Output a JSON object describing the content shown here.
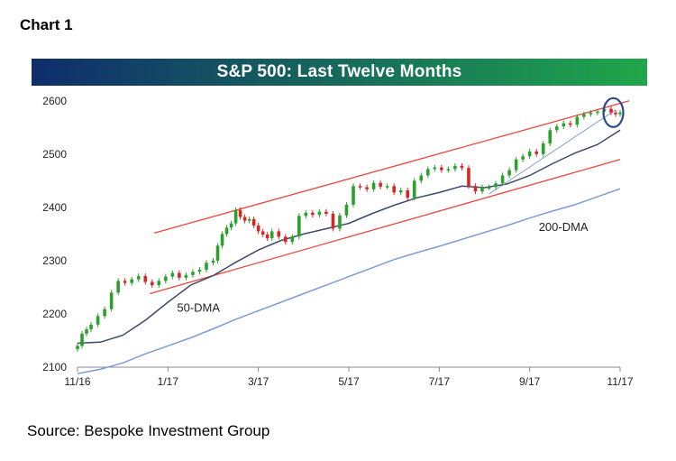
{
  "header": {
    "chart_label": "Chart 1"
  },
  "footer": {
    "source": "Source: Bespoke Investment Group"
  },
  "colors": {
    "title_gradient_start": "#0f2d6c",
    "title_gradient_end": "#1fa64a",
    "up_candle": "#2ca02c",
    "down_candle": "#d62728",
    "channel": "#e8463c",
    "dma50": "#3d4a6a",
    "dma200": "#7f9bd6",
    "highlight": "#2c4a8a"
  },
  "chart_data": {
    "type": "line",
    "title": "S&P 500: Last Twelve Months",
    "xlabel": "",
    "ylabel": "",
    "ylim": [
      2100,
      2620
    ],
    "yticks": [
      2100,
      2200,
      2300,
      2400,
      2500,
      2600
    ],
    "xlim": [
      0,
      12
    ],
    "xticks": [
      {
        "x": 0,
        "label": "11/16"
      },
      {
        "x": 2,
        "label": "1/17"
      },
      {
        "x": 4,
        "label": "3/17"
      },
      {
        "x": 6,
        "label": "5/17"
      },
      {
        "x": 8,
        "label": "7/17"
      },
      {
        "x": 10,
        "label": "9/17"
      },
      {
        "x": 12,
        "label": "11/17"
      }
    ],
    "grid": false,
    "legend": "none",
    "annotations": [
      {
        "text": "50-DMA",
        "x": 2.2,
        "y": 2204
      },
      {
        "text": "200-DMA",
        "x": 10.2,
        "y": 2356
      },
      {
        "text": "",
        "type": "circle",
        "x": 11.85,
        "y": 2578
      }
    ],
    "channel": {
      "upper": {
        "x": [
          1.7,
          12.2
        ],
        "y": [
          2352,
          2600
        ]
      },
      "lower": {
        "x": [
          1.6,
          12.0
        ],
        "y": [
          2238,
          2490
        ]
      }
    },
    "trendline": {
      "x": [
        9.1,
        11.9
      ],
      "y": [
        2425,
        2583
      ]
    },
    "series": [
      {
        "name": "S&P 500",
        "style": "candles",
        "x": [
          0.0,
          0.1,
          0.2,
          0.3,
          0.45,
          0.6,
          0.75,
          0.9,
          1.05,
          1.2,
          1.35,
          1.5,
          1.65,
          1.8,
          1.95,
          2.1,
          2.25,
          2.4,
          2.55,
          2.7,
          2.85,
          3.0,
          3.1,
          3.2,
          3.3,
          3.4,
          3.5,
          3.6,
          3.7,
          3.8,
          3.9,
          4.0,
          4.1,
          4.2,
          4.3,
          4.45,
          4.6,
          4.75,
          4.9,
          5.05,
          5.2,
          5.35,
          5.5,
          5.65,
          5.8,
          5.95,
          6.1,
          6.25,
          6.4,
          6.55,
          6.7,
          6.85,
          7.0,
          7.15,
          7.3,
          7.45,
          7.6,
          7.75,
          7.9,
          8.05,
          8.2,
          8.35,
          8.5,
          8.65,
          8.8,
          8.95,
          9.1,
          9.25,
          9.4,
          9.55,
          9.7,
          9.85,
          10.0,
          10.15,
          10.3,
          10.45,
          10.6,
          10.75,
          10.9,
          11.05,
          11.2,
          11.35,
          11.5,
          11.65,
          11.8,
          11.9,
          12.0
        ],
        "y": [
          2140,
          2163,
          2171,
          2180,
          2196,
          2209,
          2240,
          2262,
          2258,
          2265,
          2271,
          2260,
          2254,
          2262,
          2270,
          2277,
          2268,
          2273,
          2279,
          2283,
          2296,
          2300,
          2328,
          2350,
          2362,
          2370,
          2395,
          2382,
          2375,
          2378,
          2366,
          2355,
          2349,
          2342,
          2355,
          2345,
          2335,
          2345,
          2384,
          2390,
          2386,
          2392,
          2388,
          2360,
          2385,
          2405,
          2440,
          2438,
          2434,
          2446,
          2439,
          2440,
          2428,
          2432,
          2418,
          2450,
          2460,
          2472,
          2475,
          2470,
          2472,
          2478,
          2474,
          2440,
          2430,
          2438,
          2438,
          2445,
          2460,
          2470,
          2490,
          2496,
          2505,
          2500,
          2520,
          2545,
          2552,
          2558,
          2555,
          2570,
          2575,
          2578,
          2580,
          2585,
          2578,
          2575,
          2578
        ]
      },
      {
        "name": "50-DMA",
        "style": "line",
        "x": [
          0.0,
          0.5,
          1.0,
          1.5,
          2.0,
          2.5,
          3.0,
          3.5,
          4.0,
          4.5,
          5.0,
          5.5,
          6.0,
          6.5,
          7.0,
          7.5,
          8.0,
          8.5,
          9.0,
          9.5,
          10.0,
          10.5,
          11.0,
          11.5,
          12.0
        ],
        "y": [
          2145,
          2147,
          2160,
          2188,
          2222,
          2254,
          2272,
          2297,
          2320,
          2338,
          2350,
          2360,
          2370,
          2388,
          2404,
          2418,
          2428,
          2440,
          2437,
          2444,
          2460,
          2482,
          2502,
          2518,
          2545
        ]
      },
      {
        "name": "200-DMA",
        "style": "line",
        "x": [
          0.0,
          0.5,
          1.0,
          1.5,
          2.0,
          2.5,
          3.0,
          3.5,
          4.0,
          4.5,
          5.0,
          5.5,
          6.0,
          6.5,
          7.0,
          7.5,
          8.0,
          8.5,
          9.0,
          9.5,
          10.0,
          10.5,
          11.0,
          11.5,
          12.0
        ],
        "y": [
          2088,
          2096,
          2108,
          2125,
          2140,
          2155,
          2172,
          2190,
          2206,
          2222,
          2238,
          2254,
          2270,
          2286,
          2302,
          2315,
          2327,
          2340,
          2353,
          2366,
          2380,
          2393,
          2405,
          2420,
          2435
        ]
      }
    ]
  }
}
